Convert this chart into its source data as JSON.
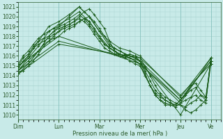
{
  "xlabel": "Pression niveau de la mer( hPa )",
  "bg_color": "#c8eae8",
  "grid_color": "#aad4d0",
  "line_color": "#1a5c1a",
  "ylim": [
    1009.5,
    1021.5
  ],
  "yticks": [
    1010,
    1011,
    1012,
    1013,
    1014,
    1015,
    1016,
    1017,
    1018,
    1019,
    1020,
    1021
  ],
  "xlim": [
    0,
    120
  ],
  "day_positions": [
    0,
    24,
    48,
    72,
    96,
    114
  ],
  "day_labels": [
    "Dim",
    "Lun",
    "Mar",
    "Mer",
    "Jeu",
    "Ve"
  ],
  "figsize": [
    3.2,
    2.0
  ],
  "dpi": 100,
  "lines": [
    {
      "x": [
        0,
        3,
        6,
        9,
        12,
        15,
        18,
        21,
        24,
        27,
        30,
        33,
        36,
        39,
        42,
        45,
        48,
        51,
        54,
        57,
        60,
        63,
        66,
        69,
        72,
        75,
        78,
        81,
        84,
        87,
        90,
        93,
        96,
        99,
        102,
        105,
        108,
        111,
        114
      ],
      "y": [
        1014.2,
        1014.5,
        1015.0,
        1015.5,
        1016.2,
        1017.0,
        1017.5,
        1018.0,
        1018.5,
        1019.0,
        1019.2,
        1019.5,
        1020.0,
        1020.5,
        1020.8,
        1020.2,
        1019.5,
        1018.8,
        1017.5,
        1016.5,
        1016.0,
        1016.0,
        1016.2,
        1016.0,
        1015.8,
        1015.0,
        1014.0,
        1013.0,
        1012.2,
        1011.8,
        1011.5,
        1011.2,
        1011.0,
        1010.5,
        1010.2,
        1010.5,
        1011.0,
        1011.5,
        1015.2
      ]
    },
    {
      "x": [
        0,
        3,
        6,
        9,
        12,
        15,
        18,
        21,
        24,
        27,
        30,
        33,
        36,
        39,
        42,
        45,
        48,
        51,
        54,
        57,
        60,
        63,
        66,
        69,
        72,
        75,
        78,
        81,
        84,
        87,
        90,
        93,
        96,
        99,
        102,
        105,
        108,
        111,
        114
      ],
      "y": [
        1014.5,
        1015.0,
        1015.5,
        1016.0,
        1016.5,
        1017.2,
        1017.5,
        1017.8,
        1018.0,
        1018.5,
        1018.8,
        1019.0,
        1019.5,
        1019.8,
        1020.0,
        1019.5,
        1018.8,
        1018.0,
        1017.2,
        1016.8,
        1016.5,
        1016.2,
        1016.0,
        1016.0,
        1015.5,
        1014.5,
        1013.5,
        1012.5,
        1012.0,
        1011.5,
        1011.2,
        1011.0,
        1011.0,
        1010.8,
        1011.2,
        1011.5,
        1012.0,
        1011.8,
        1015.5
      ]
    },
    {
      "x": [
        0,
        3,
        6,
        9,
        12,
        15,
        18,
        21,
        24,
        27,
        30,
        33,
        36,
        39,
        42,
        45,
        48,
        51,
        54,
        57,
        60,
        63,
        66,
        69,
        72,
        75,
        78,
        81,
        84,
        87,
        90,
        93,
        96,
        99,
        102,
        105,
        108,
        111,
        114
      ],
      "y": [
        1014.8,
        1015.5,
        1016.0,
        1016.8,
        1017.2,
        1017.5,
        1017.8,
        1018.2,
        1018.5,
        1018.8,
        1019.0,
        1019.2,
        1019.5,
        1019.8,
        1019.5,
        1018.8,
        1018.0,
        1017.2,
        1016.8,
        1016.5,
        1016.2,
        1016.0,
        1016.0,
        1015.8,
        1015.5,
        1014.2,
        1013.0,
        1012.0,
        1011.5,
        1011.0,
        1011.0,
        1010.8,
        1011.2,
        1011.5,
        1011.8,
        1012.0,
        1011.5,
        1011.2,
        1015.8
      ]
    },
    {
      "x": [
        0,
        3,
        6,
        9,
        12,
        15,
        18,
        21,
        24,
        27,
        30,
        33,
        36,
        39,
        42,
        45,
        48,
        51,
        54,
        57,
        60,
        63,
        66,
        69,
        72,
        75,
        78,
        81,
        84,
        87,
        90,
        93,
        96,
        99,
        102,
        105,
        108,
        111,
        114
      ],
      "y": [
        1015.0,
        1015.8,
        1016.2,
        1017.0,
        1017.5,
        1017.8,
        1018.0,
        1018.5,
        1018.8,
        1019.0,
        1019.2,
        1019.5,
        1019.8,
        1019.5,
        1019.0,
        1018.2,
        1017.5,
        1016.8,
        1016.5,
        1016.2,
        1016.0,
        1015.8,
        1015.5,
        1015.2,
        1015.0,
        1014.0,
        1013.0,
        1012.0,
        1011.5,
        1011.2,
        1011.0,
        1011.0,
        1011.5,
        1012.0,
        1012.5,
        1012.8,
        1012.0,
        1011.5,
        1015.8
      ]
    },
    {
      "x": [
        0,
        3,
        6,
        9,
        12,
        15,
        18,
        21,
        24,
        27,
        30,
        33,
        36,
        39,
        42,
        45,
        48,
        51,
        54,
        57,
        60,
        63,
        66,
        69,
        72,
        75,
        78,
        81,
        84,
        87,
        90,
        93,
        96,
        99,
        102,
        105,
        108,
        111,
        114
      ],
      "y": [
        1015.2,
        1016.0,
        1016.5,
        1017.2,
        1017.8,
        1018.2,
        1018.5,
        1018.8,
        1019.0,
        1019.2,
        1019.5,
        1019.8,
        1020.2,
        1019.8,
        1019.2,
        1018.5,
        1017.8,
        1017.2,
        1016.8,
        1016.5,
        1016.2,
        1016.0,
        1015.8,
        1015.5,
        1015.2,
        1014.0,
        1013.0,
        1012.2,
        1011.8,
        1011.5,
        1011.2,
        1011.0,
        1011.5,
        1012.2,
        1013.0,
        1013.2,
        1012.5,
        1011.8,
        1015.5
      ]
    },
    {
      "x": [
        0,
        6,
        12,
        18,
        24,
        30,
        36,
        42,
        48,
        54,
        60,
        66,
        72,
        96,
        114
      ],
      "y": [
        1014.2,
        1015.2,
        1016.5,
        1018.0,
        1019.0,
        1020.0,
        1021.0,
        1020.0,
        1018.5,
        1017.0,
        1016.5,
        1016.0,
        1015.5,
        1010.0,
        1015.2
      ]
    },
    {
      "x": [
        0,
        6,
        12,
        18,
        24,
        30,
        36,
        42,
        48,
        54,
        60,
        66,
        72,
        96,
        114
      ],
      "y": [
        1014.5,
        1015.8,
        1017.0,
        1018.5,
        1019.2,
        1019.8,
        1020.5,
        1019.5,
        1018.0,
        1016.8,
        1016.2,
        1015.8,
        1015.2,
        1011.5,
        1015.5
      ]
    },
    {
      "x": [
        0,
        6,
        12,
        18,
        24,
        30,
        36,
        42,
        48,
        54,
        60,
        66,
        72,
        96,
        114
      ],
      "y": [
        1014.8,
        1016.0,
        1017.5,
        1019.0,
        1019.5,
        1020.2,
        1021.0,
        1020.0,
        1018.5,
        1017.5,
        1016.8,
        1016.5,
        1016.0,
        1011.8,
        1015.8
      ]
    },
    {
      "x": [
        0,
        24,
        72,
        96,
        114
      ],
      "y": [
        1014.2,
        1017.2,
        1015.8,
        1012.0,
        1015.2
      ]
    },
    {
      "x": [
        0,
        24,
        72,
        96,
        114
      ],
      "y": [
        1014.5,
        1017.5,
        1015.5,
        1011.5,
        1015.5
      ]
    },
    {
      "x": [
        0,
        24,
        72,
        96,
        114
      ],
      "y": [
        1015.0,
        1018.0,
        1015.2,
        1011.2,
        1015.8
      ]
    }
  ]
}
